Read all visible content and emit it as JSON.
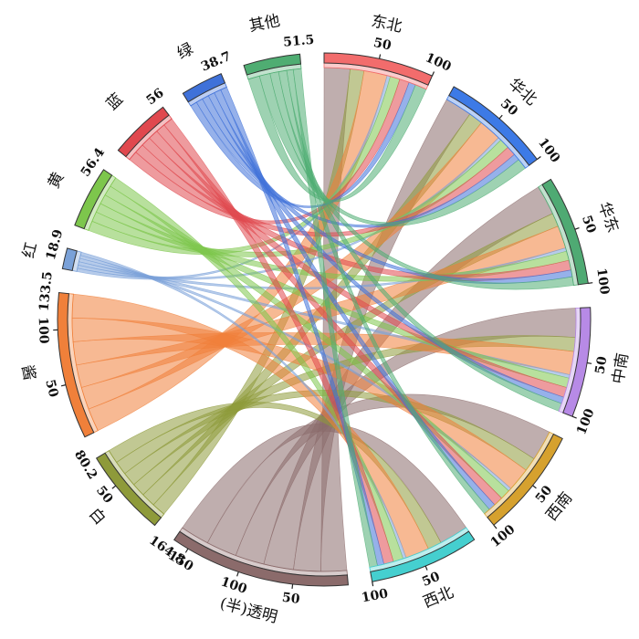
{
  "chart_data": {
    "type": "chord",
    "title": "",
    "regions": [
      {
        "name": "东北",
        "total": 100,
        "color": "#f26c6c",
        "ticks": [
          50,
          100
        ]
      },
      {
        "name": "华北",
        "total": 100,
        "color": "#3d7ae6",
        "ticks": [
          50,
          100
        ]
      },
      {
        "name": "华东",
        "total": 100,
        "color": "#4faa73",
        "ticks": [
          50,
          100
        ]
      },
      {
        "name": "中南",
        "total": 100,
        "color": "#b78ae6",
        "ticks": [
          50,
          100
        ]
      },
      {
        "name": "西南",
        "total": 100,
        "color": "#d6a12e",
        "ticks": [
          50,
          100
        ]
      },
      {
        "name": "西北",
        "total": 100,
        "color": "#45cfcf",
        "ticks": [
          50,
          100
        ]
      }
    ],
    "colors_groups": [
      {
        "name": "(半)透明",
        "total": 164.8,
        "color": "#8b6b6b",
        "ticks": [
          50,
          100,
          150
        ],
        "total_label": "164.8"
      },
      {
        "name": "白",
        "total": 80.2,
        "color": "#8e9a3a",
        "ticks": [
          50
        ],
        "total_label": "80.2"
      },
      {
        "name": "酱",
        "total": 133.5,
        "color": "#f0803a",
        "ticks": [
          50,
          100
        ],
        "total_label": "133.5"
      },
      {
        "name": "红",
        "total": 18.9,
        "color": "#7aa1d8",
        "ticks": [],
        "total_label": "18.9"
      },
      {
        "name": "黄",
        "total": 56.4,
        "color": "#7dc64c",
        "ticks": [],
        "total_label": "56.4"
      },
      {
        "name": "蓝",
        "total": 56,
        "color": "#e0484e",
        "ticks": [],
        "total_label": "56"
      },
      {
        "name": "绿",
        "total": 38.7,
        "color": "#3f71d9",
        "ticks": [],
        "total_label": "38.7"
      },
      {
        "name": "其他",
        "total": 51.5,
        "color": "#4fad72",
        "ticks": [],
        "total_label": "51.5"
      }
    ],
    "flows": {
      "rows": [
        "东北",
        "华北",
        "华东",
        "中南",
        "西南",
        "西北"
      ],
      "cols": [
        "(半)透明",
        "白",
        "酱",
        "红",
        "黄",
        "蓝",
        "绿",
        "其他"
      ],
      "matrix": [
        [
          24.8,
          13.4,
          22.3,
          3.2,
          9.4,
          9.3,
          6.5,
          11.1
        ],
        [
          26.1,
          13.7,
          21.6,
          3.1,
          9.6,
          9.2,
          6.4,
          10.3
        ],
        [
          28.7,
          13.1,
          21.8,
          3.2,
          9.0,
          9.4,
          6.5,
          8.3
        ],
        [
          27.9,
          13.5,
          22.4,
          3.3,
          9.2,
          9.6,
          6.3,
          7.8
        ],
        [
          29.4,
          13.2,
          22.6,
          3.0,
          9.7,
          9.1,
          6.7,
          6.3
        ],
        [
          27.9,
          13.3,
          22.8,
          3.1,
          9.5,
          9.4,
          6.3,
          7.7
        ]
      ]
    }
  }
}
